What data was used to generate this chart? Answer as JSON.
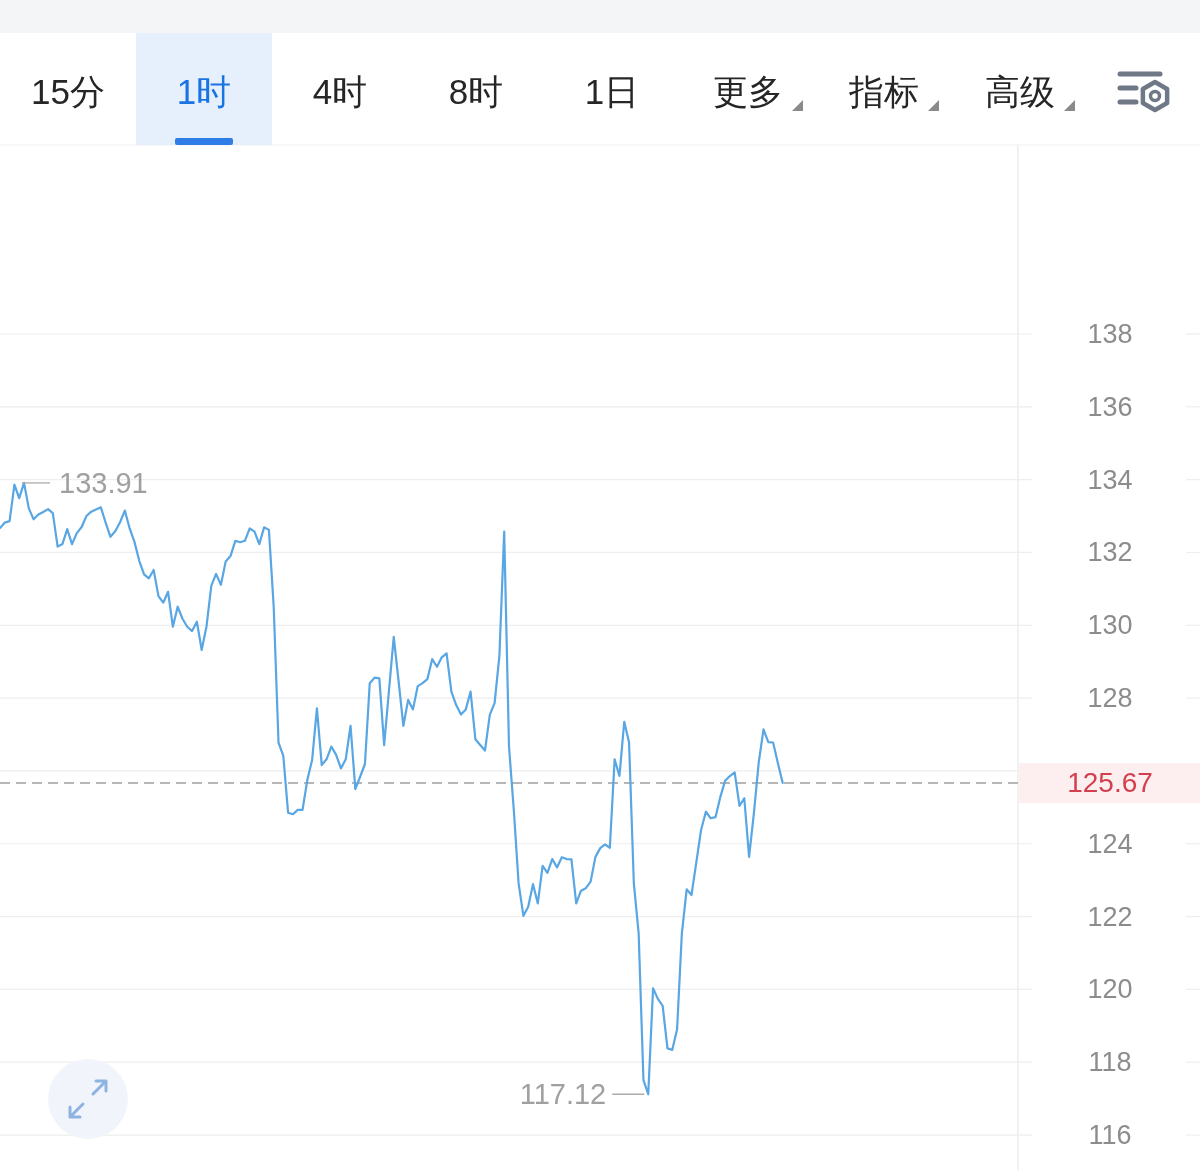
{
  "chart_data": {
    "type": "line",
    "categories": [
      null,
      null,
      null,
      null,
      null,
      null,
      null,
      null,
      null,
      null,
      null,
      null,
      null,
      null,
      null,
      null,
      null,
      null,
      null,
      null,
      null,
      null,
      null,
      null,
      null,
      null,
      null,
      null,
      null,
      null,
      null,
      null,
      null,
      null,
      null,
      null,
      null,
      null,
      null,
      null,
      null,
      null,
      null,
      null,
      null,
      null,
      null,
      null,
      null,
      null,
      null,
      null,
      null,
      null,
      null,
      null,
      null,
      null,
      null,
      null,
      null,
      null,
      null,
      null,
      null,
      null,
      null,
      null,
      null,
      null,
      null,
      null,
      null,
      null,
      null,
      null,
      null,
      null,
      null,
      null,
      null,
      null,
      null,
      null,
      null,
      null,
      null,
      null,
      null,
      null,
      null,
      null,
      null,
      null,
      null,
      null,
      null,
      null,
      null,
      null,
      null,
      null,
      null,
      null,
      null,
      null,
      null,
      null,
      null,
      null,
      null,
      null,
      null,
      null,
      null,
      null,
      null,
      null,
      null,
      null,
      null,
      null,
      null,
      null,
      null,
      null,
      null,
      null,
      null,
      null,
      null,
      null,
      null,
      null,
      null,
      null,
      null,
      null,
      null,
      null,
      null,
      null,
      null,
      null,
      null,
      null,
      null,
      null,
      null,
      null,
      null,
      null,
      null,
      null,
      null,
      null,
      null,
      null,
      null,
      null,
      null,
      null,
      null,
      null,
      null,
      null,
      null,
      null,
      null,
      null,
      null,
      null,
      null,
      null,
      null,
      null,
      null,
      null,
      null,
      null,
      null,
      null,
      null,
      null,
      null,
      null,
      null,
      null,
      null,
      null,
      null,
      null,
      null,
      null,
      null,
      null,
      null,
      null,
      null,
      null,
      null,
      null,
      null,
      null,
      null,
      null,
      null,
      null,
      null,
      null,
      null,
      null,
      null
    ],
    "series": [
      {
        "color": "#58a6e3",
        "values": [
          132.67,
          132.82,
          132.86,
          133.86,
          133.49,
          133.91,
          133.21,
          132.91,
          133.04,
          133.11,
          133.19,
          133.08,
          132.16,
          132.23,
          132.64,
          132.23,
          132.53,
          132.7,
          133.0,
          133.12,
          133.18,
          133.24,
          132.82,
          132.43,
          132.58,
          132.83,
          133.15,
          132.66,
          132.29,
          131.77,
          131.4,
          131.29,
          131.52,
          130.8,
          130.62,
          130.92,
          129.96,
          130.51,
          130.18,
          129.96,
          129.84,
          130.1,
          129.32,
          129.96,
          131.08,
          131.41,
          131.11,
          131.75,
          131.9,
          132.32,
          132.28,
          132.32,
          132.66,
          132.57,
          132.23,
          132.69,
          132.62,
          130.51,
          126.78,
          126.41,
          124.85,
          124.81,
          124.93,
          124.93,
          125.75,
          126.3,
          127.72,
          126.16,
          126.32,
          126.67,
          126.44,
          126.07,
          126.32,
          127.24,
          125.5,
          125.84,
          126.19,
          128.41,
          128.56,
          128.54,
          126.71,
          128.2,
          129.68,
          128.47,
          127.24,
          127.95,
          127.69,
          128.33,
          128.41,
          128.52,
          129.07,
          128.86,
          129.12,
          129.23,
          128.18,
          127.81,
          127.55,
          127.69,
          128.18,
          126.87,
          126.71,
          126.56,
          127.54,
          127.86,
          129.16,
          132.57,
          126.67,
          124.93,
          122.91,
          122.02,
          122.27,
          122.89,
          122.36,
          123.39,
          123.2,
          123.58,
          123.35,
          123.63,
          123.58,
          123.57,
          122.36,
          122.71,
          122.78,
          122.96,
          123.64,
          123.88,
          123.98,
          123.89,
          126.32,
          125.86,
          127.35,
          126.78,
          122.91,
          121.54,
          117.51,
          117.12,
          120.03,
          119.74,
          119.55,
          118.38,
          118.34,
          118.9,
          121.54,
          122.75,
          122.59,
          123.48,
          124.38,
          124.88,
          124.7,
          124.73,
          125.28,
          125.73,
          125.86,
          125.96,
          125.04,
          125.25,
          123.64,
          124.84,
          126.23,
          127.14,
          126.79,
          126.78,
          126.21,
          125.67,
          null,
          null,
          null,
          null,
          null,
          null,
          null,
          null,
          null,
          null,
          null,
          null,
          null,
          null,
          null,
          null,
          null,
          null,
          null,
          null,
          null,
          null,
          null,
          null,
          null,
          null,
          null,
          null,
          null,
          null,
          null,
          null,
          null,
          null,
          null,
          null,
          null,
          null,
          null,
          null,
          null,
          null,
          null,
          null,
          null,
          null,
          null,
          null,
          null
        ]
      }
    ],
    "ylim": [
      115.04,
      143.19
    ],
    "yticks": [
      116,
      118,
      120,
      122,
      124,
      {
        "value": 126,
        "label": null
      },
      128,
      130,
      132,
      134,
      136,
      138
    ],
    "grid": "y",
    "tick_labels": "y",
    "ref_lines": [
      {
        "axis": "y",
        "value": 125.67,
        "label": "125.67",
        "color": "#9e9e9e",
        "line_style": "dashed"
      }
    ],
    "annotations": [
      "15分",
      "1时",
      "4时",
      "8时",
      "1日",
      "更多",
      "指标",
      "高级",
      "133.91",
      "117.12"
    ]
  }
}
